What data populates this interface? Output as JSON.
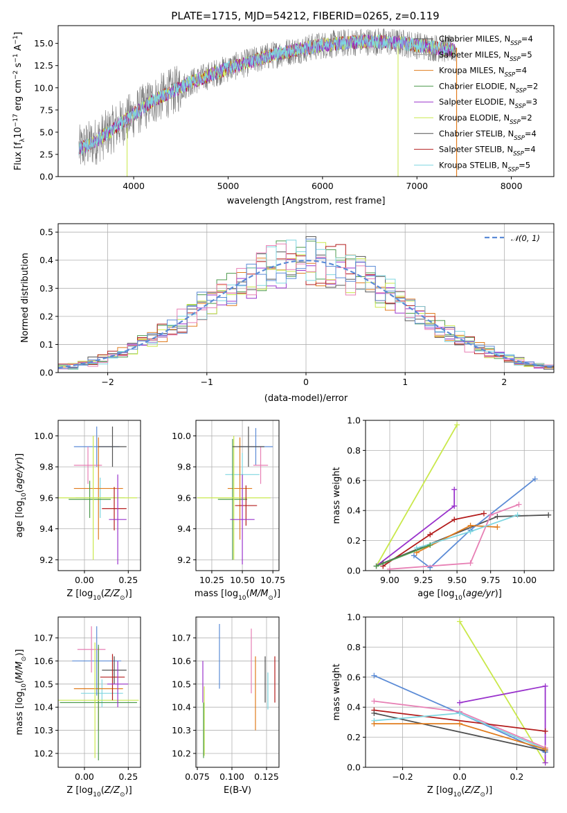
{
  "colors": {
    "chabrier_miles": "#555555",
    "salpeter_miles": "#9b9b9b",
    "kroupa_miles": "#e07b1c",
    "chabrier_elodie": "#4c9a4c",
    "salpeter_elodie": "#9932cc",
    "kroupa_elodie": "#c9e84a",
    "chabrier_stelib": "#505050",
    "salpeter_stelib": "#b31b1b",
    "kroupa_stelib": "#7fd6e0",
    "normal": "#5b8bd6",
    "pink": "#e77fb4",
    "blue": "#5b8bd6"
  },
  "chart_data": [
    {
      "id": "spectrum",
      "type": "line",
      "title": "PLATE=1715, MJD=54212, FIBERID=0265, z=0.119",
      "xlabel": "wavelength [Angstrom, rest frame]",
      "ylabel": "Flux [f",
      "ylabel_parts": [
        "Flux [f",
        "λ",
        "10",
        "−17",
        " erg cm",
        "−2",
        " s",
        "−1",
        " A",
        "−1",
        "]"
      ],
      "xlim": [
        3200,
        8450
      ],
      "ylim": [
        0,
        17
      ],
      "xticks": [
        4000,
        5000,
        6000,
        7000,
        8000
      ],
      "yticks": [
        "0.0",
        "2.5",
        "5.0",
        "7.5",
        "10.0",
        "12.5",
        "15.0"
      ],
      "legend_position": "upper right",
      "legend": [
        {
          "label": "Chabrier MILES, N",
          "sub": "SSP",
          "tail": "=4"
        },
        {
          "label": "Salpeter MILES, N",
          "sub": "SSP",
          "tail": "=5"
        },
        {
          "label": "Kroupa MILES, N",
          "sub": "SSP",
          "tail": "=4"
        },
        {
          "label": "Chabrier ELODIE, N",
          "sub": "SSP",
          "tail": "=2"
        },
        {
          "label": "Salpeter ELODIE, N",
          "sub": "SSP",
          "tail": "=3"
        },
        {
          "label": "Kroupa ELODIE, N",
          "sub": "SSP",
          "tail": "=2"
        },
        {
          "label": "Chabrier STELIB, N",
          "sub": "SSP",
          "tail": "=4"
        },
        {
          "label": "Salpeter STELIB, N",
          "sub": "SSP",
          "tail": "=4"
        },
        {
          "label": "Kroupa STELIB, N",
          "sub": "SSP",
          "tail": "=5"
        }
      ],
      "continuum": {
        "x": [
          3400,
          3600,
          3800,
          4000,
          4200,
          4400,
          4600,
          4800,
          5000,
          5200,
          5400,
          5600,
          5800,
          6000,
          6200,
          6400,
          6600,
          6800,
          7000,
          7200,
          7400
        ],
        "y": [
          3.0,
          4.0,
          5.5,
          7.0,
          8.5,
          9.5,
          10.6,
          11.4,
          12.2,
          12.8,
          13.5,
          14.0,
          14.4,
          14.8,
          15.0,
          15.2,
          15.2,
          15.1,
          14.8,
          14.5,
          14.3
        ]
      }
    },
    {
      "id": "residuals",
      "type": "line",
      "xlabel": "(data-model)/error",
      "ylabel": "Normed distribution",
      "xlim": [
        -2.5,
        2.5
      ],
      "ylim": [
        0,
        0.53
      ],
      "xticks": [
        "−2",
        "−1",
        "0",
        "1",
        "2"
      ],
      "yticks": [
        "0.0",
        "0.1",
        "0.2",
        "0.3",
        "0.4",
        "0.5"
      ],
      "grid": true,
      "legend_position": "upper right",
      "legend": [
        {
          "label": "𝒩(0, 1)"
        }
      ]
    },
    {
      "id": "age_vs_Z",
      "type": "scatter",
      "xlabel": "Z [log",
      "xlabel_parts": [
        "Z [log",
        "10",
        "(",
        "Z/Z",
        "⊙",
        ")]"
      ],
      "ylabel_parts": [
        "age  [log",
        "10",
        "(",
        "age/yr",
        ")]"
      ],
      "xlim": [
        -0.15,
        0.32
      ],
      "ylim": [
        9.13,
        10.1
      ],
      "xticks": [
        "0.00",
        "0.25"
      ],
      "yticks": [
        "9.2",
        "9.4",
        "9.6",
        "9.8",
        "10.0"
      ],
      "grid": true,
      "points": [
        {
          "x": 0.09,
          "y": 9.6,
          "xe": 0.14,
          "ye": 0.13,
          "c": "#7fd6e0"
        },
        {
          "x": 0.07,
          "y": 9.93,
          "xe": 0.13,
          "ye": 0.13,
          "c": "#5b8bd6"
        },
        {
          "x": 0.02,
          "y": 9.81,
          "xe": 0.08,
          "ye": 0.12,
          "c": "#e77fb4"
        },
        {
          "x": 0.08,
          "y": 9.66,
          "xe": 0.14,
          "ye": 0.33,
          "c": "#e07b1c"
        },
        {
          "x": 0.03,
          "y": 9.59,
          "xe": 0.12,
          "ye": 0.12,
          "c": "#4c9a4c"
        },
        {
          "x": 0.05,
          "y": 9.6,
          "xe": 0.25,
          "ye": 0.4,
          "c": "#c9e84a"
        },
        {
          "x": 0.16,
          "y": 9.93,
          "xe": 0.08,
          "ye": 0.13,
          "c": "#505050"
        },
        {
          "x": 0.17,
          "y": 9.53,
          "xe": 0.07,
          "ye": 0.14,
          "c": "#b31b1b"
        },
        {
          "x": 0.19,
          "y": 9.46,
          "xe": 0.05,
          "ye": 0.29,
          "c": "#9932cc"
        }
      ]
    },
    {
      "id": "age_vs_mass",
      "type": "scatter",
      "xlabel_parts": [
        "mass [log",
        "10",
        "(",
        "M/M",
        "⊙",
        ")]"
      ],
      "xlim": [
        10.12,
        10.8
      ],
      "ylim": [
        9.13,
        10.1
      ],
      "xticks": [
        "10.25",
        "10.50",
        "10.75"
      ],
      "yticks": [
        "9.2",
        "9.4",
        "9.6",
        "9.8",
        "10.0"
      ],
      "grid": true,
      "points": [
        {
          "x": 10.5,
          "y": 9.75,
          "xe": 0.14,
          "ye": 0.14,
          "c": "#7fd6e0"
        },
        {
          "x": 10.61,
          "y": 9.93,
          "xe": 0.14,
          "ye": 0.12,
          "c": "#5b8bd6"
        },
        {
          "x": 10.65,
          "y": 9.81,
          "xe": 0.06,
          "ye": 0.12,
          "c": "#e77fb4"
        },
        {
          "x": 10.48,
          "y": 9.66,
          "xe": 0.1,
          "ye": 0.33,
          "c": "#e07b1c"
        },
        {
          "x": 10.42,
          "y": 9.59,
          "xe": 0.12,
          "ye": 0.39,
          "c": "#4c9a4c"
        },
        {
          "x": 10.43,
          "y": 9.6,
          "xe": 0.3,
          "ye": 0.4,
          "c": "#c9e84a"
        },
        {
          "x": 10.55,
          "y": 9.93,
          "xe": 0.13,
          "ye": 0.13,
          "c": "#505050"
        },
        {
          "x": 10.53,
          "y": 9.55,
          "xe": 0.09,
          "ye": 0.13,
          "c": "#b31b1b"
        },
        {
          "x": 10.5,
          "y": 9.46,
          "xe": 0.1,
          "ye": 0.29,
          "c": "#9932cc"
        }
      ]
    },
    {
      "id": "weight_vs_age",
      "type": "line",
      "xlabel_parts": [
        "age  [log",
        "10",
        "(",
        "age/yr",
        ")]"
      ],
      "ylabel": "mass weight",
      "xlim": [
        8.82,
        10.22
      ],
      "ylim": [
        0,
        1
      ],
      "xticks": [
        "9.00",
        "9.25",
        "9.50",
        "9.75",
        "10.00"
      ],
      "yticks": [
        "0.0",
        "0.2",
        "0.4",
        "0.6",
        "0.8",
        "1.0"
      ],
      "grid": true,
      "series": [
        {
          "c": "#c9e84a",
          "x": [
            8.9,
            9.5
          ],
          "y": [
            0.03,
            0.97
          ]
        },
        {
          "c": "#9932cc",
          "x": [
            8.9,
            9.48,
            9.48
          ],
          "y": [
            0.03,
            0.43,
            0.54
          ]
        },
        {
          "c": "#b31b1b",
          "x": [
            8.95,
            9.3,
            9.48,
            9.7
          ],
          "y": [
            0.03,
            0.24,
            0.34,
            0.38
          ]
        },
        {
          "c": "#505050",
          "x": [
            8.95,
            9.8,
            10.18
          ],
          "y": [
            0.05,
            0.36,
            0.37
          ]
        },
        {
          "c": "#5b8bd6",
          "x": [
            9.18,
            9.3,
            9.6,
            10.08
          ],
          "y": [
            0.1,
            0.02,
            0.27,
            0.61
          ]
        },
        {
          "c": "#e77fb4",
          "x": [
            9.0,
            9.6,
            9.75,
            9.96
          ],
          "y": [
            0.01,
            0.05,
            0.37,
            0.44
          ]
        },
        {
          "c": "#e07b1c",
          "x": [
            9.2,
            9.6,
            9.8
          ],
          "y": [
            0.12,
            0.3,
            0.29
          ]
        },
        {
          "c": "#7fd6e0",
          "x": [
            9.2,
            9.6,
            9.95
          ],
          "y": [
            0.15,
            0.26,
            0.37
          ]
        },
        {
          "c": "#4c9a4c",
          "x": [
            8.9,
            9.3
          ],
          "y": [
            0.03,
            0.17
          ]
        }
      ]
    },
    {
      "id": "mass_vs_Z",
      "type": "scatter",
      "xlabel_parts": [
        "Z [log",
        "10",
        "(",
        "Z/Z",
        "⊙",
        ")]"
      ],
      "ylabel_parts": [
        "mass [log",
        "10",
        "(",
        "M/M",
        "⊙",
        ")]"
      ],
      "xlim": [
        -0.15,
        0.32
      ],
      "ylim": [
        10.14,
        10.79
      ],
      "xticks": [
        "0.00",
        "0.25"
      ],
      "yticks": [
        "10.2",
        "10.3",
        "10.4",
        "10.5",
        "10.6",
        "10.7"
      ],
      "grid": true,
      "points": [
        {
          "x": 0.1,
          "y": 10.46,
          "xe": 0.12,
          "ye": 0.06,
          "c": "#7fd6e0"
        },
        {
          "x": 0.07,
          "y": 10.6,
          "xe": 0.14,
          "ye": 0.15,
          "c": "#5b8bd6"
        },
        {
          "x": 0.04,
          "y": 10.65,
          "xe": 0.08,
          "ye": 0.1,
          "c": "#e77fb4"
        },
        {
          "x": 0.08,
          "y": 10.48,
          "xe": 0.14,
          "ye": 0.18,
          "c": "#e07b1c"
        },
        {
          "x": 0.08,
          "y": 10.42,
          "xe": 0.22,
          "ye": 0.25,
          "c": "#4c9a4c"
        },
        {
          "x": 0.06,
          "y": 10.43,
          "xe": 0.25,
          "ye": 0.25,
          "c": "#c9e84a"
        },
        {
          "x": 0.17,
          "y": 10.56,
          "xe": 0.07,
          "ye": 0.06,
          "c": "#505050"
        },
        {
          "x": 0.16,
          "y": 10.53,
          "xe": 0.07,
          "ye": 0.1,
          "c": "#b31b1b"
        },
        {
          "x": 0.19,
          "y": 10.5,
          "xe": 0.06,
          "ye": 0.1,
          "c": "#9932cc"
        }
      ]
    },
    {
      "id": "mass_vs_ebv",
      "type": "scatter",
      "xlabel": "E(B-V)",
      "xlim": [
        0.074,
        0.134
      ],
      "ylim": [
        10.14,
        10.79
      ],
      "xticks": [
        "0.075",
        "0.100",
        "0.125"
      ],
      "yticks": [
        "10.2",
        "10.3",
        "10.4",
        "10.5",
        "10.6",
        "10.7"
      ],
      "grid": true,
      "points": [
        {
          "x": 0.079,
          "y": 10.51,
          "ye": 0.09,
          "c": "#9932cc"
        },
        {
          "x": 0.08,
          "y": 10.34,
          "ye": 0.15,
          "c": "#c9e84a"
        },
        {
          "x": 0.0795,
          "y": 10.3,
          "ye": 0.12,
          "c": "#4c9a4c"
        },
        {
          "x": 0.091,
          "y": 10.62,
          "ye": 0.14,
          "c": "#5b8bd6"
        },
        {
          "x": 0.114,
          "y": 10.6,
          "ye": 0.14,
          "c": "#e77fb4"
        },
        {
          "x": 0.117,
          "y": 10.46,
          "ye": 0.16,
          "c": "#e07b1c"
        },
        {
          "x": 0.124,
          "y": 10.52,
          "ye": 0.1,
          "c": "#505050"
        },
        {
          "x": 0.126,
          "y": 10.47,
          "ye": 0.08,
          "c": "#7fd6e0"
        },
        {
          "x": 0.131,
          "y": 10.52,
          "ye": 0.1,
          "c": "#b31b1b"
        }
      ]
    },
    {
      "id": "weight_vs_Z",
      "type": "line",
      "xlabel_parts": [
        "Z [log",
        "10",
        "(",
        "Z/Z",
        "⊙",
        ")]"
      ],
      "ylabel": "mass weight",
      "xlim": [
        -0.33,
        0.33
      ],
      "ylim": [
        0,
        1
      ],
      "xticks": [
        "−0.2",
        "0.0",
        "0.2"
      ],
      "yticks": [
        "0.0",
        "0.2",
        "0.4",
        "0.6",
        "0.8",
        "1.0"
      ],
      "grid": true,
      "series": [
        {
          "c": "#c9e84a",
          "x": [
            0.0,
            0.3
          ],
          "y": [
            0.97,
            0.03
          ]
        },
        {
          "c": "#9932cc",
          "x": [
            0.0,
            0.3,
            0.3
          ],
          "y": [
            0.43,
            0.54,
            0.03
          ]
        },
        {
          "c": "#5b8bd6",
          "x": [
            -0.3,
            0.0,
            0.3
          ],
          "y": [
            0.61,
            0.36,
            0.1
          ]
        },
        {
          "c": "#e77fb4",
          "x": [
            -0.3,
            0.0,
            0.3
          ],
          "y": [
            0.44,
            0.37,
            0.13
          ]
        },
        {
          "c": "#b31b1b",
          "x": [
            -0.3,
            0.3
          ],
          "y": [
            0.38,
            0.24
          ]
        },
        {
          "c": "#505050",
          "x": [
            -0.3,
            0.3
          ],
          "y": [
            0.36,
            0.11
          ]
        },
        {
          "c": "#7fd6e0",
          "x": [
            -0.3,
            0.0,
            0.3
          ],
          "y": [
            0.31,
            0.36,
            0.12
          ]
        },
        {
          "c": "#e07b1c",
          "x": [
            -0.3,
            0.0,
            0.3
          ],
          "y": [
            0.29,
            0.29,
            0.12
          ]
        }
      ]
    }
  ]
}
